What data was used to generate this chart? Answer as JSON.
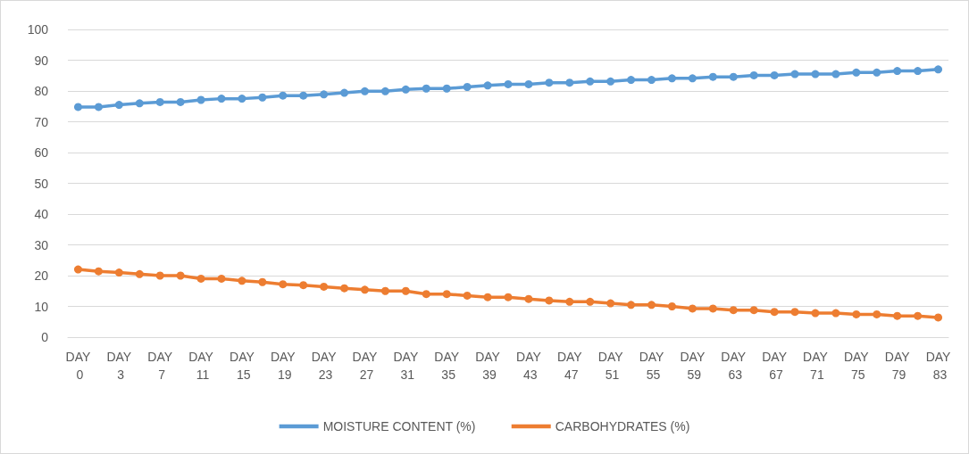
{
  "chart_data": {
    "type": "line",
    "categories": [
      "DAY 0",
      null,
      "DAY 3",
      null,
      "DAY 7",
      null,
      "DAY 11",
      null,
      "DAY 15",
      null,
      "DAY 19",
      null,
      "DAY 23",
      null,
      "DAY 27",
      null,
      "DAY 31",
      null,
      "DAY 35",
      null,
      "DAY 39",
      null,
      "DAY 43",
      null,
      "DAY 47",
      null,
      "DAY 51",
      null,
      "DAY 55",
      null,
      "DAY 59",
      null,
      "DAY 63",
      null,
      "DAY 67",
      null,
      "DAY 71",
      null,
      "DAY 75",
      null,
      "DAY 79",
      null,
      "DAY 83"
    ],
    "series": [
      {
        "name": "MOISTURE CONTENT (%)",
        "color": "#5b9bd5",
        "values": [
          74.8,
          74.8,
          75.5,
          76.0,
          76.4,
          76.4,
          77.1,
          77.5,
          77.5,
          77.9,
          78.5,
          78.5,
          78.9,
          79.4,
          79.9,
          79.9,
          80.5,
          80.8,
          80.8,
          81.3,
          81.8,
          82.2,
          82.2,
          82.7,
          82.7,
          83.1,
          83.1,
          83.6,
          83.6,
          84.1,
          84.1,
          84.6,
          84.6,
          85.1,
          85.1,
          85.5,
          85.5,
          85.5,
          86.0,
          86.0,
          86.5,
          86.5,
          87.0
        ]
      },
      {
        "name": "CARBOHYDRATES (%)",
        "color": "#ed7d31",
        "values": [
          22.0,
          21.4,
          21.0,
          20.5,
          20.0,
          20.0,
          19.0,
          19.0,
          18.3,
          17.9,
          17.2,
          16.9,
          16.4,
          15.9,
          15.4,
          15.0,
          15.0,
          14.0,
          14.0,
          13.5,
          13.0,
          13.0,
          12.4,
          11.9,
          11.5,
          11.5,
          11.0,
          10.5,
          10.5,
          10.0,
          9.3,
          9.3,
          8.8,
          8.8,
          8.2,
          8.2,
          7.8,
          7.8,
          7.4,
          7.4,
          6.9,
          6.9,
          6.4
        ]
      }
    ],
    "ylim": [
      0,
      100
    ],
    "yticks": [
      0,
      10,
      20,
      30,
      40,
      50,
      60,
      70,
      80,
      90,
      100
    ],
    "grid": "y",
    "legend": "bottom",
    "marker": "circle",
    "line_style": "solid"
  }
}
